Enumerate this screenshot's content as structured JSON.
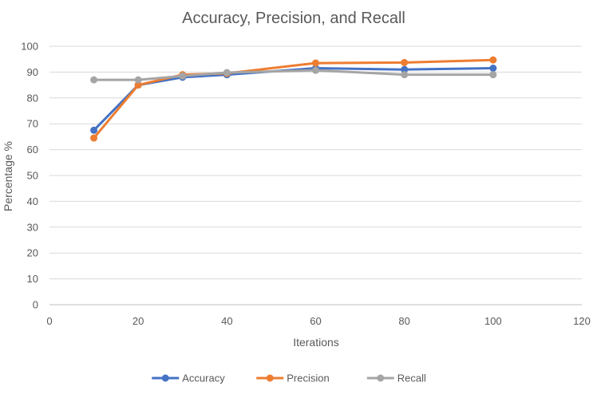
{
  "chart_data": {
    "type": "line",
    "title": "Accuracy, Precision, and Recall",
    "xlabel": "Iterations",
    "ylabel": "Percentage %",
    "xlim": [
      0,
      120
    ],
    "ylim": [
      0,
      100
    ],
    "x_ticks": [
      0,
      20,
      40,
      60,
      80,
      100,
      120
    ],
    "y_ticks": [
      0,
      10,
      20,
      30,
      40,
      50,
      60,
      70,
      80,
      90,
      100
    ],
    "grid": "horizontal",
    "legend_position": "bottom",
    "series": [
      {
        "name": "Accuracy",
        "color": "#4472C4",
        "x": [
          10,
          20,
          30,
          40,
          60,
          80,
          100
        ],
        "y": [
          67.5,
          85,
          88,
          89,
          91.5,
          91,
          91.5
        ]
      },
      {
        "name": "Precision",
        "color": "#ED7D31",
        "x": [
          10,
          20,
          30,
          40,
          60,
          80,
          100
        ],
        "y": [
          64.5,
          85,
          89,
          89.5,
          93.5,
          93.7,
          94.7
        ]
      },
      {
        "name": "Recall",
        "color": "#A5A5A5",
        "x": [
          10,
          20,
          30,
          40,
          60,
          80,
          100
        ],
        "y": [
          87,
          87,
          88.5,
          89.8,
          90.7,
          89,
          89
        ]
      }
    ]
  }
}
